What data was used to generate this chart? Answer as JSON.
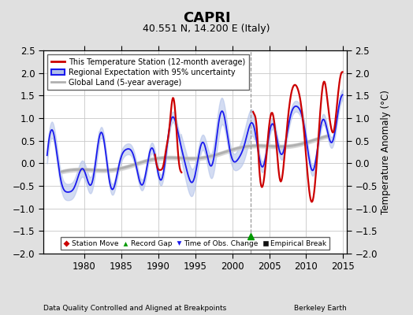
{
  "title": "CAPRI",
  "subtitle": "40.551 N, 14.200 E (Italy)",
  "ylabel": "Temperature Anomaly (°C)",
  "xlabel_left": "Data Quality Controlled and Aligned at Breakpoints",
  "xlabel_right": "Berkeley Earth",
  "xlim": [
    1974.5,
    2015.5
  ],
  "ylim": [
    -2.0,
    2.5
  ],
  "yticks_left": [
    -2,
    -1.5,
    -1,
    -0.5,
    0,
    0.5,
    1,
    1.5,
    2,
    2.5
  ],
  "yticks_right": [
    -2,
    -1.5,
    -1,
    -0.5,
    0,
    0.5,
    1,
    1.5,
    2,
    2.5
  ],
  "xticks": [
    1980,
    1985,
    1990,
    1995,
    2000,
    2005,
    2010,
    2015
  ],
  "bg_color": "#e0e0e0",
  "plot_bg_color": "#ffffff",
  "grid_color": "#c8c8c8",
  "red_color": "#cc0000",
  "blue_color": "#1a1aee",
  "blue_fill_color": "#b0c0e8",
  "gray_color": "#b0b0b0",
  "gray_fill_color": "#d0d0d0",
  "record_gap_x": 2002.5,
  "title_fontsize": 13,
  "subtitle_fontsize": 9,
  "tick_fontsize": 8.5
}
